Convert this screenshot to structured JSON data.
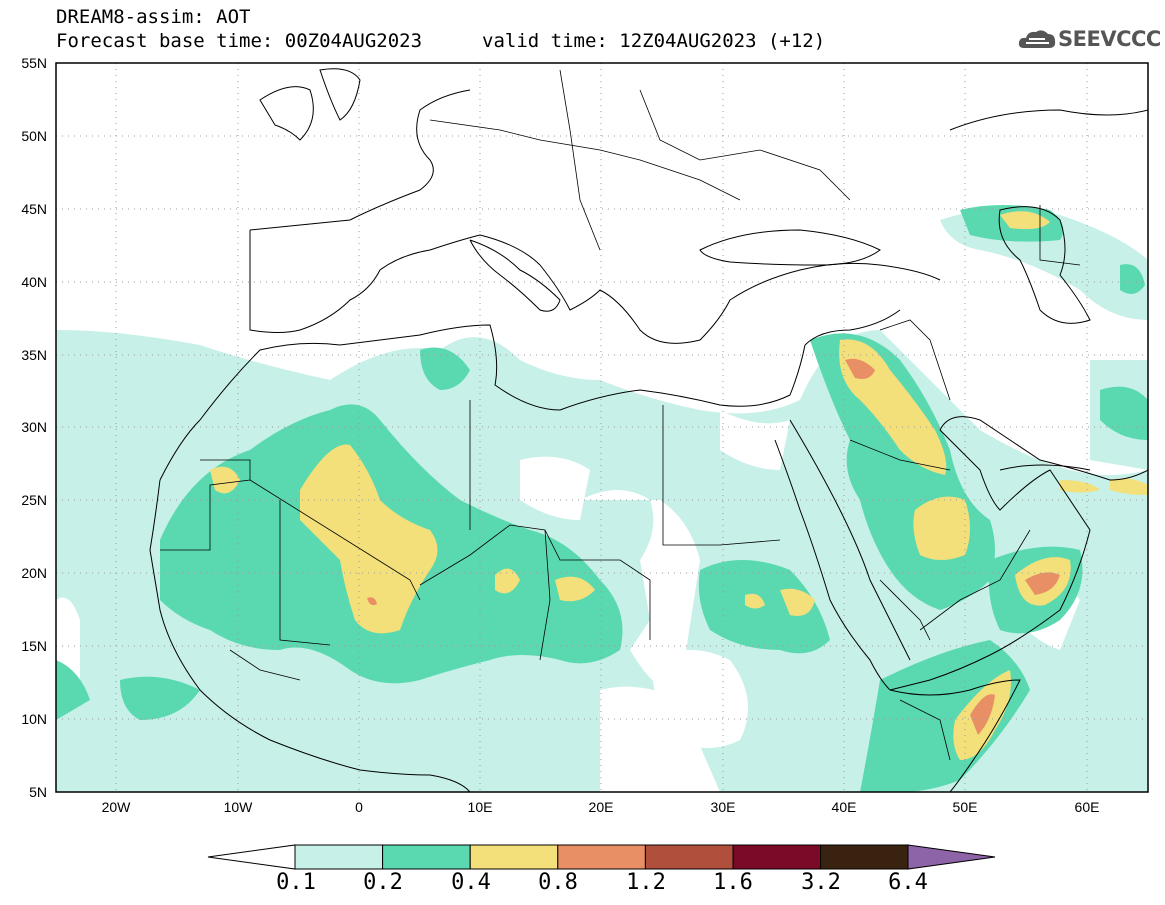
{
  "title": {
    "line1": "DREAM8-assim: AOT",
    "line2": "Forecast base time: 00Z04AUG2023",
    "valid": "valid time: 12Z04AUG2023 (+12)"
  },
  "logo": {
    "text": "SEEVCCC",
    "icon": "cloud-icon"
  },
  "map": {
    "lon_range": [
      -25,
      65
    ],
    "lat_range": [
      5,
      55
    ],
    "lat_ticks": [
      "5N",
      "10N",
      "15N",
      "20N",
      "25N",
      "30N",
      "35N",
      "40N",
      "45N",
      "50N",
      "55N"
    ],
    "lon_ticks": [
      "20W",
      "10W",
      "0",
      "10E",
      "20E",
      "30E",
      "40E",
      "50E",
      "60E"
    ],
    "grid": true
  },
  "colorbar": {
    "levels": [
      "0.1",
      "0.2",
      "0.4",
      "0.8",
      "1.2",
      "1.6",
      "3.2",
      "6.4"
    ],
    "colors": [
      "#c7f0e8",
      "#5ad9b0",
      "#f3e07a",
      "#e98f66",
      "#b0503c",
      "#7a0a26",
      "#3a2210",
      "#8e64a8"
    ]
  }
}
